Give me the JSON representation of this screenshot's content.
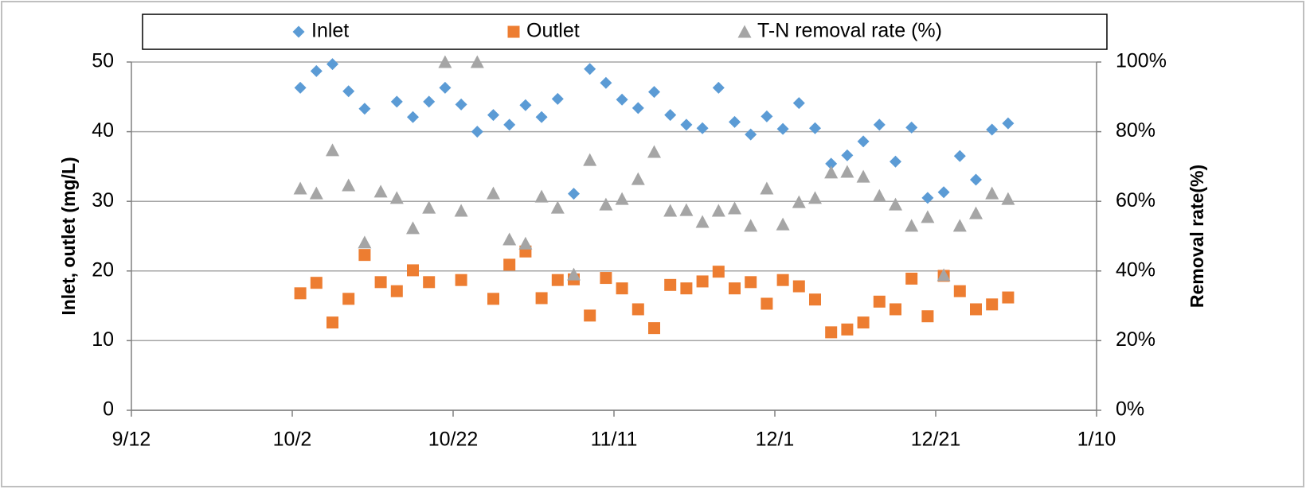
{
  "chart_data": {
    "type": "scatter",
    "x": [
      "10/3",
      "10/5",
      "10/7",
      "10/9",
      "10/11",
      "10/13",
      "10/15",
      "10/17",
      "10/19",
      "10/21",
      "10/23",
      "10/25",
      "10/27",
      "10/29",
      "10/31",
      "11/2",
      "11/4",
      "11/6",
      "11/8",
      "11/10",
      "11/12",
      "11/14",
      "11/16",
      "11/18",
      "11/20",
      "11/22",
      "11/24",
      "11/26",
      "11/28",
      "11/30",
      "12/2",
      "12/4",
      "12/6",
      "12/8",
      "12/10",
      "12/12",
      "12/14",
      "12/16",
      "12/18",
      "12/20",
      "12/22",
      "12/24",
      "12/26",
      "12/28",
      "12/30"
    ],
    "series": [
      {
        "name": "Inlet",
        "color": "#5b9bd5",
        "marker": "diamond",
        "values": [
          46.3,
          48.7,
          49.7,
          45.8,
          43.3,
          null,
          44.3,
          42.1,
          44.3,
          46.3,
          43.9,
          40.0,
          42.4,
          41.0,
          43.8,
          42.1,
          44.7,
          31.1,
          49.0,
          47.0,
          44.6,
          43.4,
          45.7,
          42.4,
          41.0,
          40.5,
          46.3,
          41.4,
          39.6,
          42.2,
          40.4,
          44.1,
          40.5,
          35.4,
          36.6,
          38.6,
          41.0,
          35.7,
          40.6,
          30.5,
          31.3,
          36.5,
          33.1,
          40.3,
          41.2
        ]
      },
      {
        "name": "Outlet",
        "color": "#ed7d31",
        "marker": "square",
        "values": [
          16.8,
          18.3,
          12.6,
          16.0,
          22.3,
          18.4,
          17.1,
          20.1,
          18.4,
          null,
          18.7,
          null,
          16.0,
          20.9,
          22.8,
          16.1,
          18.7,
          18.8,
          13.6,
          19.0,
          17.5,
          14.5,
          11.8,
          18.0,
          17.5,
          18.5,
          19.9,
          17.5,
          18.4,
          15.3,
          18.7,
          17.8,
          15.9,
          11.2,
          11.6,
          12.6,
          15.6,
          14.5,
          18.9,
          13.5,
          19.3,
          17.1,
          14.5,
          15.2,
          16.2
        ]
      },
      {
        "name": "T-N removal rate (%)",
        "color": "#a5a5a5",
        "marker": "triangle",
        "axis": "y2",
        "values": [
          63.7,
          62.3,
          74.7,
          64.6,
          48.2,
          62.8,
          61.0,
          52.3,
          58.2,
          100,
          57.3,
          100,
          62.3,
          49.1,
          47.9,
          61.4,
          58.2,
          39.0,
          71.9,
          59.1,
          60.7,
          66.4,
          74.2,
          57.3,
          57.5,
          54.1,
          57.3,
          58.0,
          53.0,
          63.7,
          53.4,
          59.8,
          61.0,
          68.3,
          68.5,
          67.1,
          61.6,
          59.1,
          53.0,
          55.5,
          38.8,
          53.0,
          56.6,
          62.3,
          60.7
        ]
      }
    ],
    "xlim": [
      "9/12",
      "1/10"
    ],
    "xticks": [
      "9/12",
      "10/2",
      "10/22",
      "11/11",
      "12/1",
      "12/21",
      "1/10"
    ],
    "ylabel": "Inlet, outlet (mg/L)",
    "ylim": [
      0,
      50
    ],
    "yticks": [
      0,
      10,
      20,
      30,
      40,
      50
    ],
    "y2label": "Removal rate(%)",
    "y2lim": [
      0,
      100
    ],
    "y2ticks": [
      {
        "value": 0,
        "label": "0%"
      },
      {
        "value": 20,
        "label": "20%"
      },
      {
        "value": 40,
        "label": "40%"
      },
      {
        "value": 60,
        "label": "60%"
      },
      {
        "value": 80,
        "label": "80%"
      },
      {
        "value": 100,
        "label": "100%"
      }
    ],
    "grid": true,
    "legend": "top"
  }
}
